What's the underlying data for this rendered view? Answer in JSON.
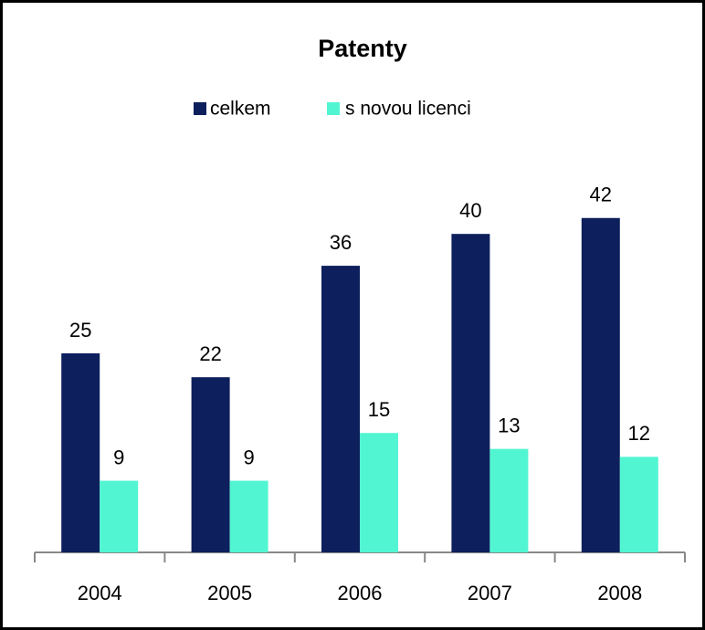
{
  "chart_data": {
    "type": "bar",
    "title": "Patenty",
    "categories": [
      "2004",
      "2005",
      "2006",
      "2007",
      "2008"
    ],
    "series": [
      {
        "name": "celkem",
        "color": "#0d1f5c",
        "values": [
          25,
          22,
          36,
          40,
          42
        ]
      },
      {
        "name": "s novou licenci",
        "color": "#52f5d2",
        "values": [
          9,
          9,
          15,
          13,
          12
        ]
      }
    ],
    "legend": "top"
  }
}
